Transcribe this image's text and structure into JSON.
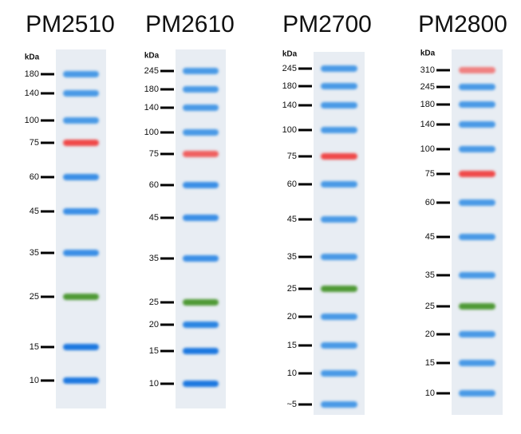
{
  "ladders": [
    {
      "name": "PM2510",
      "unit": "kDa",
      "bands": [
        {
          "label": "180",
          "color": "#4a9ae6"
        },
        {
          "label": "140",
          "color": "#4a9ae6"
        },
        {
          "label": "100",
          "color": "#4a9ae6"
        },
        {
          "label": "75",
          "color": "#f04848"
        },
        {
          "label": "60",
          "color": "#3a8fe6"
        },
        {
          "label": "45",
          "color": "#3a8fe6"
        },
        {
          "label": "35",
          "color": "#3a8fe6"
        },
        {
          "label": "25",
          "color": "#4f9a36"
        },
        {
          "label": "15",
          "color": "#1f78e0"
        },
        {
          "label": "10",
          "color": "#1f78e0"
        }
      ]
    },
    {
      "name": "PM2610",
      "unit": "kDa",
      "bands": [
        {
          "label": "245",
          "color": "#4a9ae6"
        },
        {
          "label": "180",
          "color": "#4a9ae6"
        },
        {
          "label": "140",
          "color": "#4a9ae6"
        },
        {
          "label": "100",
          "color": "#4a9ae6"
        },
        {
          "label": "75",
          "color": "#f06060"
        },
        {
          "label": "60",
          "color": "#3a8fe6"
        },
        {
          "label": "45",
          "color": "#3a8fe6"
        },
        {
          "label": "35",
          "color": "#3a8fe6"
        },
        {
          "label": "25",
          "color": "#4f9a36"
        },
        {
          "label": "20",
          "color": "#2a84e2"
        },
        {
          "label": "15",
          "color": "#1f78e0"
        },
        {
          "label": "10",
          "color": "#1f78e0"
        }
      ]
    },
    {
      "name": "PM2700",
      "unit": "kDa",
      "bands": [
        {
          "label": "245",
          "color": "#4a9ae6"
        },
        {
          "label": "180",
          "color": "#4a9ae6"
        },
        {
          "label": "140",
          "color": "#4a9ae6"
        },
        {
          "label": "100",
          "color": "#4a9ae6"
        },
        {
          "label": "75",
          "color": "#f04848"
        },
        {
          "label": "60",
          "color": "#4a9ae6"
        },
        {
          "label": "45",
          "color": "#4a9ae6"
        },
        {
          "label": "35",
          "color": "#4a9ae6"
        },
        {
          "label": "25",
          "color": "#4f9a36"
        },
        {
          "label": "20",
          "color": "#4a9ae6"
        },
        {
          "label": "15",
          "color": "#4a9ae6"
        },
        {
          "label": "10",
          "color": "#4a9ae6"
        },
        {
          "label": "~5",
          "color": "#4a9ae6"
        }
      ]
    },
    {
      "name": "PM2800",
      "unit": "kDa",
      "bands": [
        {
          "label": "310",
          "color": "#f08080"
        },
        {
          "label": "245",
          "color": "#4a9ae6"
        },
        {
          "label": "180",
          "color": "#4a9ae6"
        },
        {
          "label": "140",
          "color": "#4a9ae6"
        },
        {
          "label": "100",
          "color": "#4a9ae6"
        },
        {
          "label": "75",
          "color": "#f04848"
        },
        {
          "label": "60",
          "color": "#4a9ae6"
        },
        {
          "label": "45",
          "color": "#4a9ae6"
        },
        {
          "label": "35",
          "color": "#4a9ae6"
        },
        {
          "label": "25",
          "color": "#4f9a36"
        },
        {
          "label": "20",
          "color": "#4a9ae6"
        },
        {
          "label": "15",
          "color": "#4a9ae6"
        },
        {
          "label": "10",
          "color": "#4a9ae6"
        }
      ]
    }
  ]
}
